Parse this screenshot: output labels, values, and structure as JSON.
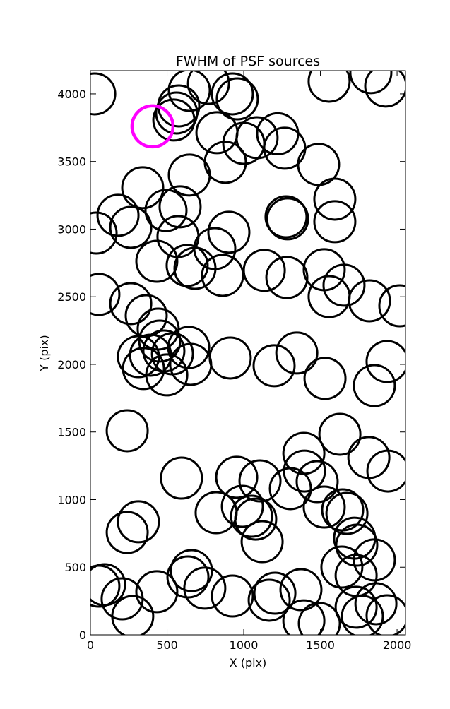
{
  "chart_data": {
    "type": "scatter",
    "title": "FWHM of PSF sources",
    "xlabel": "X (pix)",
    "ylabel": "Y (pix)",
    "xlim": [
      0,
      2055
    ],
    "ylim": [
      0,
      4172
    ],
    "xticks": [
      0,
      500,
      1000,
      1500,
      2000
    ],
    "yticks": [
      0,
      500,
      1000,
      1500,
      2000,
      2500,
      3000,
      3500,
      4000
    ],
    "grid": false,
    "series": [
      {
        "color": "#000000",
        "x": [
          28,
          645,
          770,
          926,
          958,
          1557,
          1829,
          1926,
          562,
          576,
          544,
          825,
          1000,
          1087,
          1221,
          1267,
          1488,
          645,
          880,
          341,
          1594,
          1594,
          180,
          263,
          37,
          493,
          585,
          571,
          903,
          811,
          1276,
          1286,
          433,
          631,
          682,
          862,
          1134,
          1281,
          1525,
          1654,
          1557,
          1820,
          2018,
          55,
          263,
          364,
          442,
          452,
          392,
          479,
          535,
          641,
          654,
          313,
          346,
          498,
          912,
          1198,
          1346,
          1530,
          1852,
          1935,
          240,
          1627,
          1392,
          1816,
          1940,
          594,
          954,
          1106,
          1396,
          1479,
          1304,
          820,
          991,
          1051,
          1078,
          1525,
          1645,
          1673,
          1120,
          1723,
          1737,
          313,
          240,
          659,
          636,
          746,
          55,
          92,
          207,
          433,
          926,
          1166,
          1203,
          1373,
          1392,
          1493,
          1640,
          1733,
          1852,
          1733,
          1862,
          1774,
          1935,
          276
        ],
        "y": [
          4000,
          4026,
          4078,
          4000,
          3963,
          4094,
          4157,
          4058,
          3859,
          3911,
          3807,
          3713,
          3634,
          3676,
          3705,
          3598,
          3478,
          3400,
          3494,
          3306,
          3222,
          3055,
          3102,
          3013,
          2971,
          3138,
          3165,
          2945,
          2977,
          2856,
          3091,
          3076,
          2762,
          2731,
          2710,
          2658,
          2695,
          2642,
          2700,
          2585,
          2501,
          2470,
          2433,
          2517,
          2449,
          2360,
          2261,
          2172,
          2068,
          2099,
          2078,
          2125,
          2000,
          2057,
          1969,
          1922,
          2047,
          1990,
          2084,
          1896,
          1843,
          2021,
          1509,
          1483,
          1342,
          1311,
          1211,
          1159,
          1165,
          1138,
          1211,
          1133,
          1081,
          903,
          950,
          877,
          856,
          945,
          924,
          898,
          689,
          715,
          663,
          836,
          757,
          475,
          428,
          345,
          360,
          371,
          266,
          319,
          287,
          256,
          308,
          334,
          104,
          84,
          501,
          439,
          554,
          204,
          230,
          136,
          141,
          136
        ]
      },
      {
        "color": "#ff00ff",
        "x": [
          405
        ],
        "y": [
          3760
        ]
      }
    ]
  }
}
